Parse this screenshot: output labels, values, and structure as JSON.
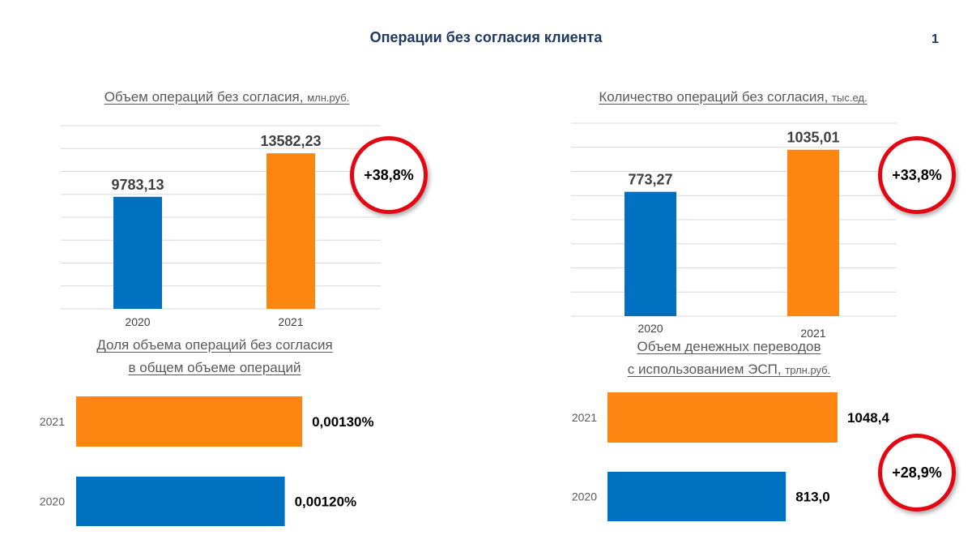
{
  "page": {
    "title": "Операции без согласия клиента",
    "number": "1"
  },
  "colors": {
    "blue": "#0070c0",
    "orange": "#fd8612",
    "badge_ring": "#e30613",
    "title": "#1f3864",
    "gridline": "#d9d9d9"
  },
  "badges": {
    "volume": "+38,8%",
    "count": "+33,8%",
    "transfers": "+28,9%"
  },
  "chart_data": [
    {
      "type": "bar",
      "title": "Объем операций без согласия,",
      "unit": "млн.руб.",
      "categories": [
        "2020",
        "2021"
      ],
      "values": [
        9783.13,
        13582.23
      ],
      "value_labels": [
        "9783,13",
        "13582,23"
      ],
      "colors": [
        "#0070c0",
        "#fd8612"
      ],
      "ylim": [
        0,
        16000
      ],
      "grid": true
    },
    {
      "type": "bar",
      "title": "Количество операций без согласия,",
      "unit": "тыс.ед.",
      "categories": [
        "2020",
        "2021"
      ],
      "values": [
        773.27,
        1035.01
      ],
      "value_labels": [
        "773,27",
        "1035,01"
      ],
      "colors": [
        "#0070c0",
        "#fd8612"
      ],
      "ylim": [
        0,
        1200
      ],
      "grid": true
    },
    {
      "type": "bar",
      "orientation": "horizontal",
      "title_line1": "Доля объема операций без согласия",
      "title_line2": "в общем объеме операций",
      "categories": [
        "2021",
        "2020"
      ],
      "values": [
        0.0013,
        0.0012
      ],
      "value_labels": [
        "0,00130%",
        "0,00120%"
      ],
      "colors": [
        "#fd8612",
        "#0070c0"
      ],
      "xlim": [
        0,
        0.0015
      ],
      "grid": false
    },
    {
      "type": "bar",
      "orientation": "horizontal",
      "title_line1": "Объем денежных переводов",
      "title_line2": "с использованием ЭСП,",
      "unit": "трлн.руб.",
      "categories": [
        "2021",
        "2020"
      ],
      "values": [
        1048.4,
        813.0
      ],
      "value_labels": [
        "1048,4",
        "813,0"
      ],
      "colors": [
        "#fd8612",
        "#0070c0"
      ],
      "xlim": [
        0,
        1200
      ],
      "grid": false
    }
  ]
}
